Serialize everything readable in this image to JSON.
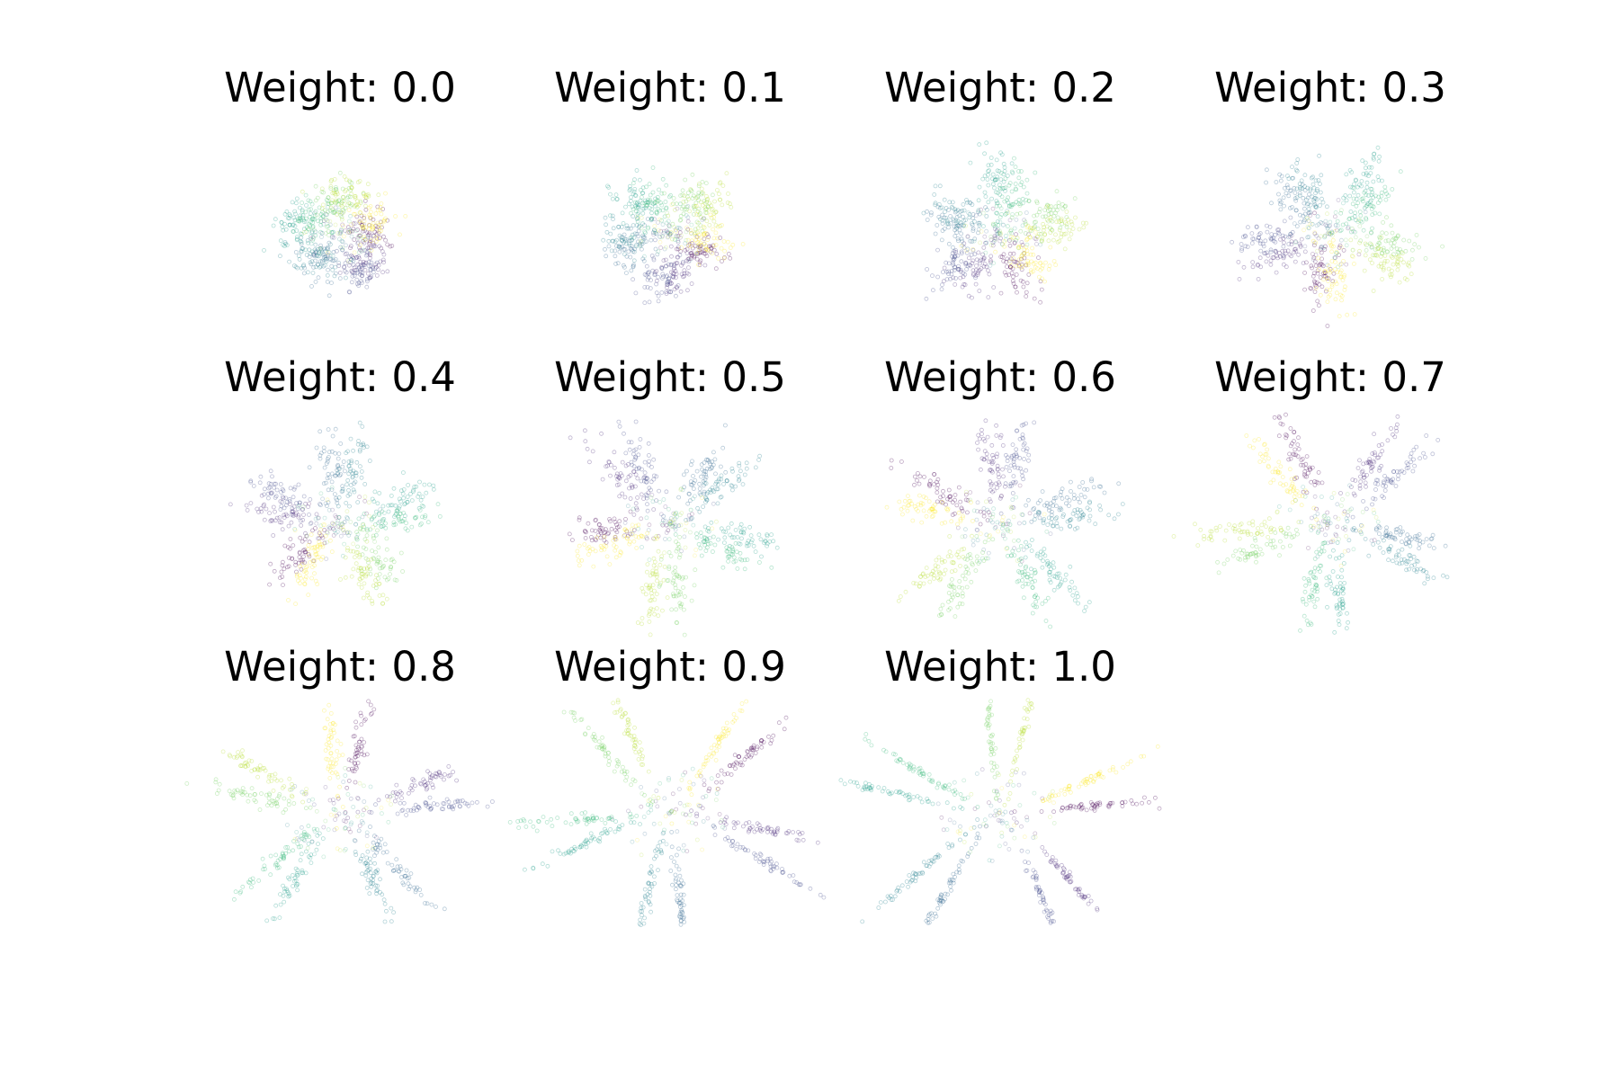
{
  "chart_data": {
    "type": "scatter",
    "layout": "grid of small multiples (3 rows x 4 columns, last cell empty)",
    "axes_visible": false,
    "grid": false,
    "legend": "none",
    "colormap": "viridis",
    "palette": [
      "#440154",
      "#482878",
      "#3e4989",
      "#31688e",
      "#26828e",
      "#1f9e89",
      "#35b779",
      "#6ece58",
      "#b5de2b",
      "#fde725"
    ],
    "marker": "hollow circle, low alpha",
    "panels": [
      {
        "title": "Weight: 0.0",
        "weight": 0.0
      },
      {
        "title": "Weight: 0.1",
        "weight": 0.1
      },
      {
        "title": "Weight: 0.2",
        "weight": 0.2
      },
      {
        "title": "Weight: 0.3",
        "weight": 0.3
      },
      {
        "title": "Weight: 0.4",
        "weight": 0.4
      },
      {
        "title": "Weight: 0.5",
        "weight": 0.5
      },
      {
        "title": "Weight: 0.6",
        "weight": 0.6
      },
      {
        "title": "Weight: 0.7",
        "weight": 0.7
      },
      {
        "title": "Weight: 0.8",
        "weight": 0.8
      },
      {
        "title": "Weight: 0.9",
        "weight": 0.9
      },
      {
        "title": "Weight: 1.0",
        "weight": 1.0
      }
    ]
  }
}
